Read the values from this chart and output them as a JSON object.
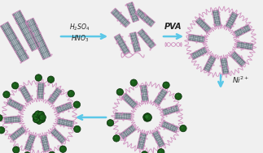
{
  "bg_color": "#f0f0f0",
  "arrow_color": "#5bc8e8",
  "text_color": "#000000",
  "tube_face_dark": "#5a6a72",
  "tube_face_light": "#8a9eaa",
  "tube_face_mid": "#6e8290",
  "tube_edge": "#cc88bb",
  "pva_color": "#cc88bb",
  "ni_color": "#1a5c1a",
  "ni_edge": "#0a2a0a",
  "ni_highlight": "#2a7a2a"
}
